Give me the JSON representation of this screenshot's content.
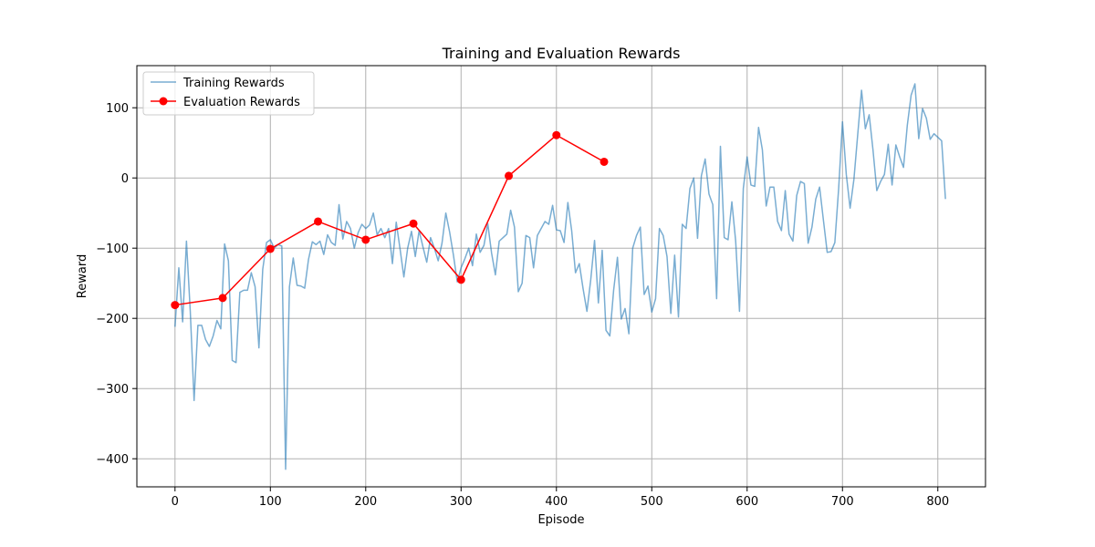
{
  "chart_data": {
    "type": "line",
    "title": "Training and Evaluation Rewards",
    "xlabel": "Episode",
    "ylabel": "Reward",
    "xlim": [
      -40,
      850
    ],
    "ylim": [
      -440,
      160
    ],
    "xticks": [
      0,
      100,
      200,
      300,
      400,
      500,
      600,
      700,
      800
    ],
    "yticks": [
      -400,
      -300,
      -200,
      -100,
      0,
      100
    ],
    "grid": true,
    "legend_position": "upper-left",
    "series": [
      {
        "name": "Training Rewards",
        "color": "#1f77b4",
        "opacity": 0.6,
        "marker": "none",
        "x": [
          0,
          4,
          8,
          12,
          16,
          20,
          24,
          28,
          32,
          36,
          40,
          44,
          48,
          52,
          56,
          60,
          64,
          68,
          72,
          76,
          80,
          84,
          88,
          92,
          96,
          100,
          104,
          108,
          112,
          116,
          120,
          124,
          128,
          132,
          136,
          140,
          144,
          148,
          152,
          156,
          160,
          164,
          168,
          172,
          176,
          180,
          184,
          188,
          192,
          196,
          200,
          204,
          208,
          212,
          216,
          220,
          224,
          228,
          232,
          236,
          240,
          244,
          248,
          252,
          256,
          260,
          264,
          268,
          272,
          276,
          280,
          284,
          288,
          292,
          296,
          300,
          304,
          308,
          312,
          316,
          320,
          324,
          328,
          332,
          336,
          340,
          344,
          348,
          352,
          356,
          360,
          364,
          368,
          372,
          376,
          380,
          384,
          388,
          392,
          396,
          400,
          404,
          408,
          412,
          416,
          420,
          424,
          428,
          432,
          436,
          440,
          444,
          448,
          452,
          456,
          460,
          464,
          468,
          472,
          476,
          480,
          484,
          488,
          492,
          496,
          500,
          504,
          508,
          512,
          516,
          520,
          524,
          528,
          532,
          536,
          540,
          544,
          548,
          552,
          556,
          560,
          564,
          568,
          572,
          576,
          580,
          584,
          588,
          592,
          596,
          600,
          604,
          608,
          612,
          616,
          620,
          624,
          628,
          632,
          636,
          640,
          644,
          648,
          652,
          656,
          660,
          664,
          668,
          672,
          676,
          680,
          684,
          688,
          692,
          696,
          700,
          704,
          708,
          712,
          716,
          720,
          724,
          728,
          732,
          736,
          740,
          744,
          748,
          752,
          756,
          760,
          764,
          768,
          772,
          776,
          780,
          784,
          788,
          792,
          796,
          800,
          804,
          808
        ],
        "y": [
          -212,
          -128,
          -205,
          -90,
          -190,
          -317,
          -210,
          -210,
          -230,
          -240,
          -225,
          -203,
          -215,
          -94,
          -118,
          -260,
          -263,
          -163,
          -160,
          -160,
          -135,
          -155,
          -242,
          -130,
          -92,
          -88,
          -100,
          -95,
          -97,
          -415,
          -155,
          -114,
          -153,
          -154,
          -157,
          -116,
          -91,
          -95,
          -90,
          -109,
          -81,
          -92,
          -96,
          -38,
          -87,
          -62,
          -72,
          -100,
          -78,
          -66,
          -72,
          -67,
          -50,
          -81,
          -72,
          -85,
          -72,
          -122,
          -63,
          -101,
          -141,
          -100,
          -76,
          -112,
          -75,
          -98,
          -120,
          -85,
          -100,
          -118,
          -93,
          -50,
          -77,
          -110,
          -148,
          -128,
          -115,
          -100,
          -125,
          -80,
          -106,
          -96,
          -65,
          -107,
          -138,
          -90,
          -85,
          -80,
          -46,
          -70,
          -162,
          -150,
          -82,
          -85,
          -128,
          -82,
          -72,
          -62,
          -66,
          -39,
          -74,
          -75,
          -92,
          -35,
          -75,
          -135,
          -122,
          -158,
          -190,
          -145,
          -89,
          -178,
          -103,
          -217,
          -225,
          -160,
          -113,
          -201,
          -186,
          -222,
          -100,
          -82,
          -70,
          -166,
          -154,
          -191,
          -172,
          -72,
          -82,
          -112,
          -193,
          -110,
          -198,
          -66,
          -72,
          -15,
          0,
          -86,
          3,
          27,
          -23,
          -38,
          -172,
          45,
          -85,
          -88,
          -34,
          -90,
          -190,
          -15,
          30,
          -10,
          -12,
          72,
          40,
          -40,
          -13,
          -13,
          -62,
          -75,
          -18,
          -80,
          -90,
          -25,
          -5,
          -8,
          -93,
          -70,
          -30,
          -13,
          -60,
          -106,
          -105,
          -92,
          -15,
          80,
          5,
          -43,
          -2,
          62,
          125,
          70,
          90,
          40,
          -18,
          -5,
          5,
          48,
          -10,
          47,
          30,
          15,
          75,
          118,
          134,
          56,
          99,
          85,
          55,
          63,
          58,
          53,
          -30
        ]
      },
      {
        "name": "Evaluation Rewards",
        "color": "#ff0000",
        "opacity": 1,
        "marker": "circle",
        "x": [
          0,
          50,
          100,
          150,
          200,
          250,
          300,
          350,
          400,
          450
        ],
        "y": [
          -181,
          -171,
          -101,
          -62,
          -88,
          -65,
          -145,
          3,
          61,
          23
        ]
      }
    ]
  }
}
